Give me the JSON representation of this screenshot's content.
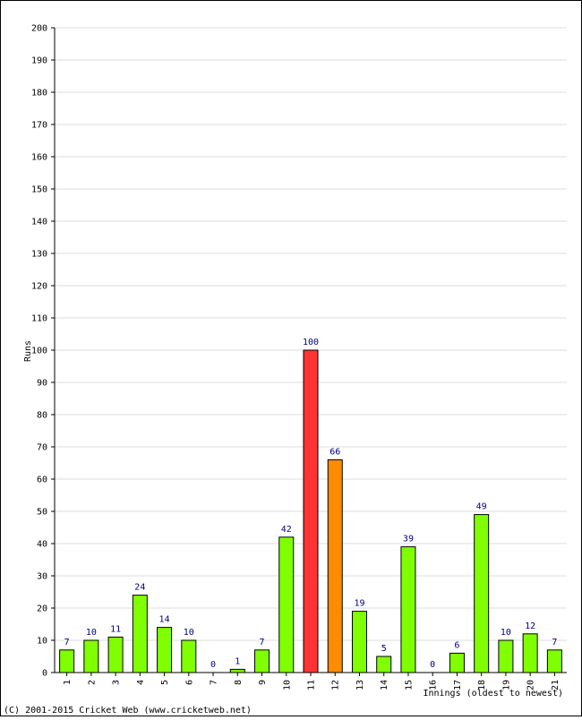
{
  "chart_data": {
    "type": "bar",
    "title": "",
    "ylabel": "Runs",
    "xlabel": "Innings (oldest to newest)",
    "ylim": [
      0,
      200
    ],
    "ytick_step": 10,
    "grid": true,
    "legend": "none",
    "categories": [
      "1",
      "2",
      "3",
      "4",
      "5",
      "6",
      "7",
      "8",
      "9",
      "10",
      "11",
      "12",
      "13",
      "14",
      "15",
      "16",
      "17",
      "18",
      "19",
      "20",
      "21"
    ],
    "values": [
      7,
      10,
      11,
      24,
      14,
      10,
      0,
      1,
      7,
      42,
      100,
      66,
      19,
      5,
      39,
      0,
      6,
      49,
      10,
      12,
      7
    ],
    "bar_colors": [
      "#80ff00",
      "#80ff00",
      "#80ff00",
      "#80ff00",
      "#80ff00",
      "#80ff00",
      "#80ff00",
      "#80ff00",
      "#80ff00",
      "#80ff00",
      "#ff3333",
      "#ff8c00",
      "#80ff00",
      "#80ff00",
      "#80ff00",
      "#80ff00",
      "#80ff00",
      "#80ff00",
      "#80ff00",
      "#80ff00",
      "#80ff00"
    ],
    "colors": {
      "normal": "#80ff00",
      "hundred": "#ff3333",
      "fifty": "#ff8c00",
      "value_label": "#000080",
      "grid": "#dddddd"
    }
  },
  "footer": {
    "copyright": "(C) 2001-2015 Cricket Web (www.cricketweb.net)"
  }
}
